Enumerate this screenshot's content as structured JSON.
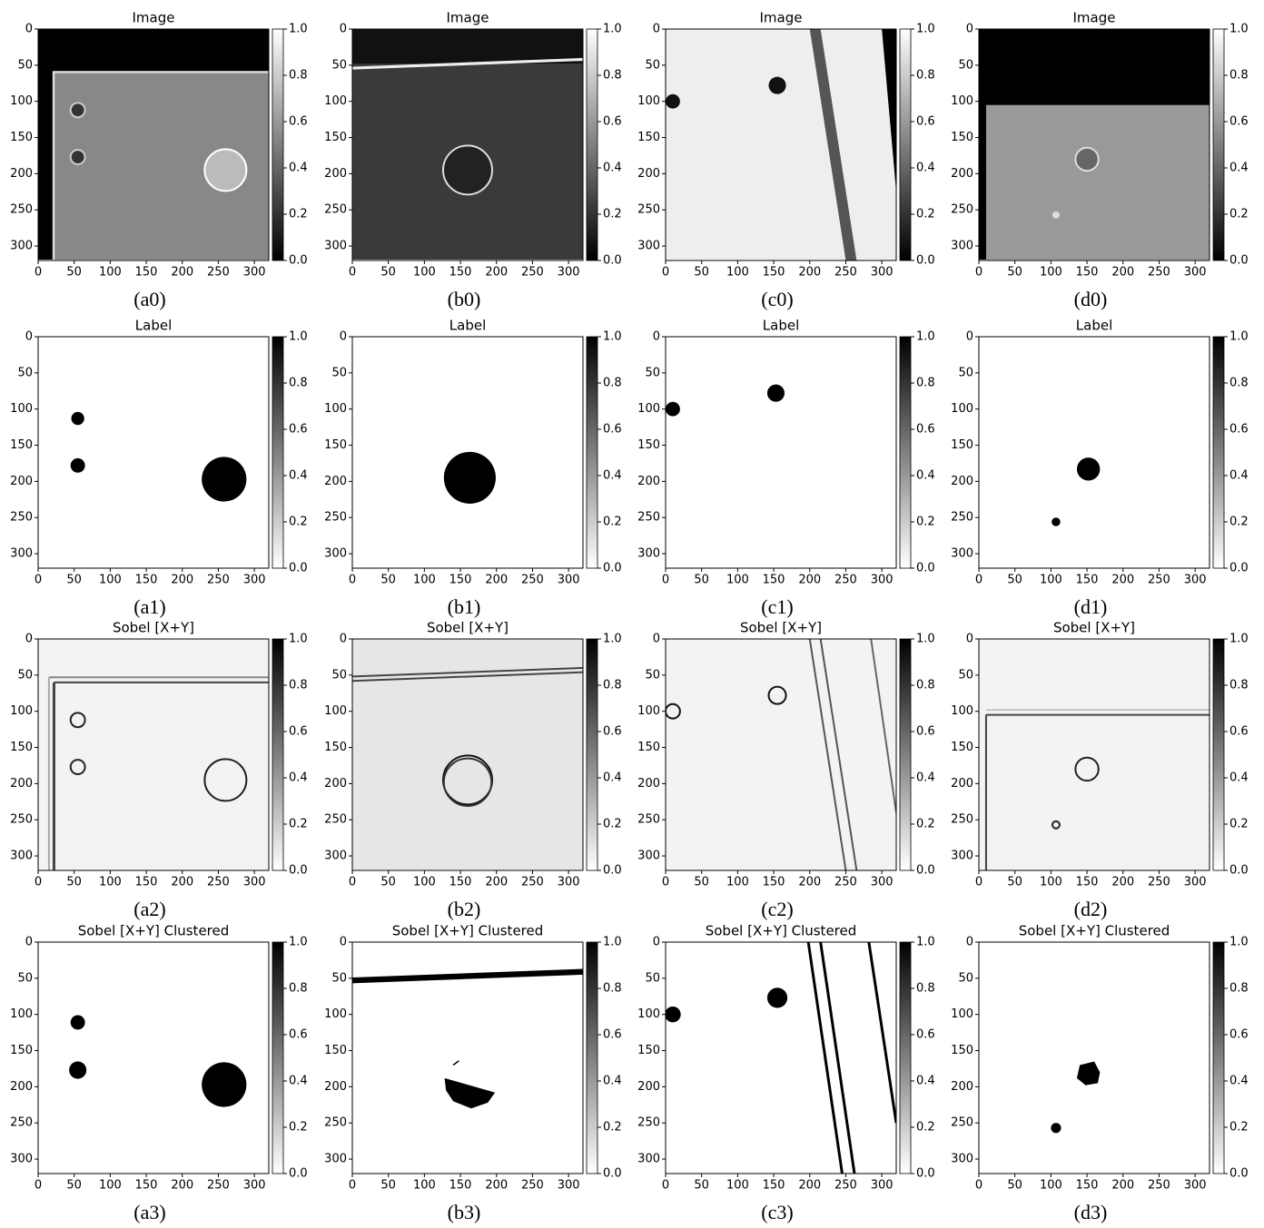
{
  "chart_data": [
    {
      "type": "image",
      "title": "Image",
      "caption": "(a0)",
      "colormap": "gray",
      "xlim": [
        0,
        320
      ],
      "ylim": [
        320,
        0
      ],
      "xticks": [
        0,
        50,
        100,
        150,
        200,
        250,
        300
      ],
      "yticks": [
        0,
        50,
        100,
        150,
        200,
        250,
        300
      ],
      "clim": [
        0,
        1
      ],
      "cticks": [
        {
          "value": 0,
          "label": "0.0"
        },
        {
          "value": 0.2,
          "label": "0.2"
        },
        {
          "value": 0.4,
          "label": "0.4"
        },
        {
          "value": 0.6,
          "label": "0.6"
        },
        {
          "value": 0.8,
          "label": "0.8"
        },
        {
          "value": 1,
          "label": "1.0"
        }
      ]
    },
    {
      "type": "image",
      "title": "Image",
      "caption": "(b0)",
      "colormap": "gray",
      "xlim": [
        0,
        320
      ],
      "ylim": [
        320,
        0
      ],
      "xticks": [
        0,
        50,
        100,
        150,
        200,
        250,
        300
      ],
      "yticks": [
        0,
        50,
        100,
        150,
        200,
        250,
        300
      ],
      "clim": [
        0,
        1
      ],
      "cticks": [
        {
          "value": 0,
          "label": "0.0"
        },
        {
          "value": 0.2,
          "label": "0.2"
        },
        {
          "value": 0.4,
          "label": "0.4"
        },
        {
          "value": 0.6,
          "label": "0.6"
        },
        {
          "value": 0.8,
          "label": "0.8"
        },
        {
          "value": 1,
          "label": "1.0"
        }
      ]
    },
    {
      "type": "image",
      "title": "Image",
      "caption": "(c0)",
      "colormap": "gray",
      "xlim": [
        0,
        320
      ],
      "ylim": [
        320,
        0
      ],
      "xticks": [
        0,
        50,
        100,
        150,
        200,
        250,
        300
      ],
      "yticks": [
        0,
        50,
        100,
        150,
        200,
        250,
        300
      ],
      "clim": [
        0,
        1
      ],
      "cticks": [
        {
          "value": 0,
          "label": "0.0"
        },
        {
          "value": 0.2,
          "label": "0.2"
        },
        {
          "value": 0.4,
          "label": "0.4"
        },
        {
          "value": 0.6,
          "label": "0.6"
        },
        {
          "value": 0.8,
          "label": "0.8"
        },
        {
          "value": 1,
          "label": "1.0"
        }
      ]
    },
    {
      "type": "image",
      "title": "Image",
      "caption": "(d0)",
      "colormap": "gray",
      "xlim": [
        0,
        320
      ],
      "ylim": [
        320,
        0
      ],
      "xticks": [
        0,
        50,
        100,
        150,
        200,
        250,
        300
      ],
      "yticks": [
        0,
        50,
        100,
        150,
        200,
        250,
        300
      ],
      "clim": [
        0,
        1
      ],
      "cticks": [
        {
          "value": 0,
          "label": "0.0"
        },
        {
          "value": 0.2,
          "label": "0.2"
        },
        {
          "value": 0.4,
          "label": "0.4"
        },
        {
          "value": 0.6,
          "label": "0.6"
        },
        {
          "value": 0.8,
          "label": "0.8"
        },
        {
          "value": 1,
          "label": "1.0"
        }
      ]
    },
    {
      "type": "image",
      "title": "Label",
      "caption": "(a1)",
      "colormap": "gray_r",
      "xlim": [
        0,
        320
      ],
      "ylim": [
        320,
        0
      ],
      "xticks": [
        0,
        50,
        100,
        150,
        200,
        250,
        300
      ],
      "yticks": [
        0,
        50,
        100,
        150,
        200,
        250,
        300
      ],
      "clim": [
        0,
        1
      ],
      "cticks": [
        {
          "value": 0,
          "label": "0.0"
        },
        {
          "value": 0.2,
          "label": "0.2"
        },
        {
          "value": 0.4,
          "label": "0.4"
        },
        {
          "value": 0.6,
          "label": "0.6"
        },
        {
          "value": 0.8,
          "label": "0.8"
        },
        {
          "value": 1,
          "label": "1.0"
        }
      ]
    },
    {
      "type": "image",
      "title": "Label",
      "caption": "(b1)",
      "colormap": "gray_r",
      "xlim": [
        0,
        320
      ],
      "ylim": [
        320,
        0
      ],
      "xticks": [
        0,
        50,
        100,
        150,
        200,
        250,
        300
      ],
      "yticks": [
        0,
        50,
        100,
        150,
        200,
        250,
        300
      ],
      "clim": [
        0,
        1
      ],
      "cticks": [
        {
          "value": 0,
          "label": "0.0"
        },
        {
          "value": 0.2,
          "label": "0.2"
        },
        {
          "value": 0.4,
          "label": "0.4"
        },
        {
          "value": 0.6,
          "label": "0.6"
        },
        {
          "value": 0.8,
          "label": "0.8"
        },
        {
          "value": 1,
          "label": "1.0"
        }
      ]
    },
    {
      "type": "image",
      "title": "Label",
      "caption": "(c1)",
      "colormap": "gray_r",
      "xlim": [
        0,
        320
      ],
      "ylim": [
        320,
        0
      ],
      "xticks": [
        0,
        50,
        100,
        150,
        200,
        250,
        300
      ],
      "yticks": [
        0,
        50,
        100,
        150,
        200,
        250,
        300
      ],
      "clim": [
        0,
        1
      ],
      "cticks": [
        {
          "value": 0,
          "label": "0.0"
        },
        {
          "value": 0.2,
          "label": "0.2"
        },
        {
          "value": 0.4,
          "label": "0.4"
        },
        {
          "value": 0.6,
          "label": "0.6"
        },
        {
          "value": 0.8,
          "label": "0.8"
        },
        {
          "value": 1,
          "label": "1.0"
        }
      ]
    },
    {
      "type": "image",
      "title": "Label",
      "caption": "(d1)",
      "colormap": "gray_r",
      "xlim": [
        0,
        320
      ],
      "ylim": [
        320,
        0
      ],
      "xticks": [
        0,
        50,
        100,
        150,
        200,
        250,
        300
      ],
      "yticks": [
        0,
        50,
        100,
        150,
        200,
        250,
        300
      ],
      "clim": [
        0,
        1
      ],
      "cticks": [
        {
          "value": 0,
          "label": "0.0"
        },
        {
          "value": 0.2,
          "label": "0.2"
        },
        {
          "value": 0.4,
          "label": "0.4"
        },
        {
          "value": 0.6,
          "label": "0.6"
        },
        {
          "value": 0.8,
          "label": "0.8"
        },
        {
          "value": 1,
          "label": "1.0"
        }
      ]
    },
    {
      "type": "image",
      "title": "Sobel [X+Y]",
      "caption": "(a2)",
      "colormap": "gray_r",
      "xlim": [
        0,
        320
      ],
      "ylim": [
        320,
        0
      ],
      "xticks": [
        0,
        50,
        100,
        150,
        200,
        250,
        300
      ],
      "yticks": [
        0,
        50,
        100,
        150,
        200,
        250,
        300
      ],
      "clim": [
        0,
        1
      ],
      "cticks": [
        {
          "value": 0,
          "label": "0.0"
        },
        {
          "value": 0.2,
          "label": "0.2"
        },
        {
          "value": 0.4,
          "label": "0.4"
        },
        {
          "value": 0.6,
          "label": "0.6"
        },
        {
          "value": 0.8,
          "label": "0.8"
        },
        {
          "value": 1,
          "label": "1.0"
        }
      ]
    },
    {
      "type": "image",
      "title": "Sobel [X+Y]",
      "caption": "(b2)",
      "colormap": "gray_r",
      "xlim": [
        0,
        320
      ],
      "ylim": [
        320,
        0
      ],
      "xticks": [
        0,
        50,
        100,
        150,
        200,
        250,
        300
      ],
      "yticks": [
        0,
        50,
        100,
        150,
        200,
        250,
        300
      ],
      "clim": [
        0,
        1
      ],
      "cticks": [
        {
          "value": 0,
          "label": "0.0"
        },
        {
          "value": 0.2,
          "label": "0.2"
        },
        {
          "value": 0.4,
          "label": "0.4"
        },
        {
          "value": 0.6,
          "label": "0.6"
        },
        {
          "value": 0.8,
          "label": "0.8"
        },
        {
          "value": 1,
          "label": "1.0"
        }
      ]
    },
    {
      "type": "image",
      "title": "Sobel [X+Y]",
      "caption": "(c2)",
      "colormap": "gray_r",
      "xlim": [
        0,
        320
      ],
      "ylim": [
        320,
        0
      ],
      "xticks": [
        0,
        50,
        100,
        150,
        200,
        250,
        300
      ],
      "yticks": [
        0,
        50,
        100,
        150,
        200,
        250,
        300
      ],
      "clim": [
        0,
        1
      ],
      "cticks": [
        {
          "value": 0,
          "label": "0.0"
        },
        {
          "value": 0.2,
          "label": "0.2"
        },
        {
          "value": 0.4,
          "label": "0.4"
        },
        {
          "value": 0.6,
          "label": "0.6"
        },
        {
          "value": 0.8,
          "label": "0.8"
        },
        {
          "value": 1,
          "label": "1.0"
        }
      ]
    },
    {
      "type": "image",
      "title": "Sobel [X+Y]",
      "caption": "(d2)",
      "colormap": "gray_r",
      "xlim": [
        0,
        320
      ],
      "ylim": [
        320,
        0
      ],
      "xticks": [
        0,
        50,
        100,
        150,
        200,
        250,
        300
      ],
      "yticks": [
        0,
        50,
        100,
        150,
        200,
        250,
        300
      ],
      "clim": [
        0,
        1
      ],
      "cticks": [
        {
          "value": 0,
          "label": "0.0"
        },
        {
          "value": 0.2,
          "label": "0.2"
        },
        {
          "value": 0.4,
          "label": "0.4"
        },
        {
          "value": 0.6,
          "label": "0.6"
        },
        {
          "value": 0.8,
          "label": "0.8"
        },
        {
          "value": 1,
          "label": "1.0"
        }
      ]
    },
    {
      "type": "image",
      "title": "Sobel [X+Y] Clustered",
      "caption": "(a3)",
      "colormap": "gray_r",
      "xlim": [
        0,
        320
      ],
      "ylim": [
        320,
        0
      ],
      "xticks": [
        0,
        50,
        100,
        150,
        200,
        250,
        300
      ],
      "yticks": [
        0,
        50,
        100,
        150,
        200,
        250,
        300
      ],
      "clim": [
        0,
        1
      ],
      "cticks": [
        {
          "value": 0,
          "label": "0.0"
        },
        {
          "value": 0.2,
          "label": "0.2"
        },
        {
          "value": 0.4,
          "label": "0.4"
        },
        {
          "value": 0.6,
          "label": "0.6"
        },
        {
          "value": 0.8,
          "label": "0.8"
        },
        {
          "value": 1,
          "label": "1.0"
        }
      ]
    },
    {
      "type": "image",
      "title": "Sobel [X+Y] Clustered",
      "caption": "(b3)",
      "colormap": "gray_r",
      "xlim": [
        0,
        320
      ],
      "ylim": [
        320,
        0
      ],
      "xticks": [
        0,
        50,
        100,
        150,
        200,
        250,
        300
      ],
      "yticks": [
        0,
        50,
        100,
        150,
        200,
        250,
        300
      ],
      "clim": [
        0,
        1
      ],
      "cticks": [
        {
          "value": 0,
          "label": "0.0"
        },
        {
          "value": 0.2,
          "label": "0.2"
        },
        {
          "value": 0.4,
          "label": "0.4"
        },
        {
          "value": 0.6,
          "label": "0.6"
        },
        {
          "value": 0.8,
          "label": "0.8"
        },
        {
          "value": 1,
          "label": "1.0"
        }
      ]
    },
    {
      "type": "image",
      "title": "Sobel [X+Y] Clustered",
      "caption": "(c3)",
      "colormap": "gray_r",
      "xlim": [
        0,
        320
      ],
      "ylim": [
        320,
        0
      ],
      "xticks": [
        0,
        50,
        100,
        150,
        200,
        250,
        300
      ],
      "yticks": [
        0,
        50,
        100,
        150,
        200,
        250,
        300
      ],
      "clim": [
        0,
        1
      ],
      "cticks": [
        {
          "value": 0,
          "label": "0.0"
        },
        {
          "value": 0.2,
          "label": "0.2"
        },
        {
          "value": 0.4,
          "label": "0.4"
        },
        {
          "value": 0.6,
          "label": "0.6"
        },
        {
          "value": 0.8,
          "label": "0.8"
        },
        {
          "value": 1,
          "label": "1.0"
        }
      ]
    },
    {
      "type": "image",
      "title": "Sobel [X+Y] Clustered",
      "caption": "(d3)",
      "colormap": "gray_r",
      "xlim": [
        0,
        320
      ],
      "ylim": [
        320,
        0
      ],
      "xticks": [
        0,
        50,
        100,
        150,
        200,
        250,
        300
      ],
      "yticks": [
        0,
        50,
        100,
        150,
        200,
        250,
        300
      ],
      "clim": [
        0,
        1
      ],
      "cticks": [
        {
          "value": 0,
          "label": "0.0"
        },
        {
          "value": 0.2,
          "label": "0.2"
        },
        {
          "value": 0.4,
          "label": "0.4"
        },
        {
          "value": 0.6,
          "label": "0.6"
        },
        {
          "value": 0.8,
          "label": "0.8"
        },
        {
          "value": 1,
          "label": "1.0"
        }
      ]
    }
  ]
}
